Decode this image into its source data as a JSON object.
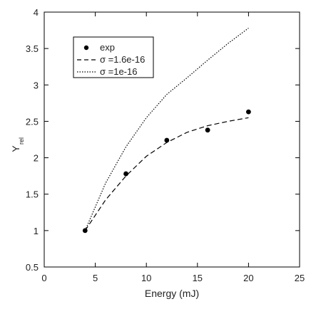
{
  "chart_data": {
    "type": "line",
    "title": "",
    "xlabel": "Energy (mJ)",
    "ylabel_main": "Y",
    "ylabel_sub": "rel",
    "xlim": [
      0,
      25
    ],
    "ylim": [
      0.5,
      4
    ],
    "x_ticks": [
      0,
      5,
      10,
      15,
      20,
      25
    ],
    "x_tick_labels": [
      "0",
      "5",
      "10",
      "15",
      "20",
      "25"
    ],
    "y_ticks": [
      0.5,
      1,
      1.5,
      2,
      2.5,
      3,
      3.5,
      4
    ],
    "y_tick_labels": [
      "0.5",
      "1",
      "1.5",
      "2",
      "2.5",
      "3",
      "3.5",
      "4"
    ],
    "grid": false,
    "legend_position": "top-left",
    "series": [
      {
        "name": "exp",
        "style": "markers",
        "color": "#000000",
        "x": [
          4,
          8,
          12,
          16,
          20
        ],
        "y": [
          1.0,
          1.78,
          2.24,
          2.38,
          2.63
        ]
      },
      {
        "name": "σ =1.6e-16",
        "style": "dashed",
        "color": "#000000",
        "x": [
          4,
          6,
          8,
          10,
          12,
          14,
          16,
          18,
          20
        ],
        "y": [
          1.0,
          1.42,
          1.75,
          2.02,
          2.21,
          2.35,
          2.44,
          2.5,
          2.55
        ]
      },
      {
        "name": "σ =1e-16",
        "style": "dotted",
        "color": "#000000",
        "x": [
          4,
          6,
          8,
          10,
          12,
          14,
          16,
          18,
          20
        ],
        "y": [
          1.0,
          1.65,
          2.15,
          2.55,
          2.87,
          3.1,
          3.34,
          3.57,
          3.78
        ]
      }
    ]
  }
}
